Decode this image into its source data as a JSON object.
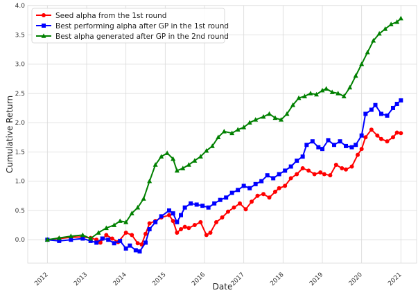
{
  "chart_data": {
    "type": "line",
    "xlabel": "Date",
    "ylabel": "Cumulative Return",
    "xlim": [
      2011.5,
      2021.4
    ],
    "ylim": [
      -0.4,
      4.0
    ],
    "x_ticks": [
      2012,
      2013,
      2014,
      2015,
      2016,
      2017,
      2018,
      2019,
      2020,
      2021
    ],
    "x_tick_labels": [
      "2012",
      "2013",
      "2014",
      "2015",
      "2016",
      "2017",
      "2018",
      "2019",
      "2020",
      "2021"
    ],
    "y_ticks": [
      0.0,
      0.5,
      1.0,
      1.5,
      2.0,
      2.5,
      3.0,
      3.5,
      4.0
    ],
    "y_tick_labels": [
      "0.0",
      "0.5",
      "1.0",
      "1.5",
      "2.0",
      "2.5",
      "3.0",
      "3.5",
      "4.0"
    ],
    "grid": true,
    "legend_position": "top-left",
    "series": [
      {
        "name": "Seed alpha from the 1st round",
        "color": "#ff0000",
        "marker": "circle",
        "x": [
          2012.0,
          2012.3,
          2012.6,
          2012.9,
          2013.1,
          2013.25,
          2013.35,
          2013.5,
          2013.65,
          2013.8,
          2014.0,
          2014.15,
          2014.3,
          2014.4,
          2014.5,
          2014.6,
          2014.75,
          2014.9,
          2015.1,
          2015.2,
          2015.3,
          2015.4,
          2015.5,
          2015.6,
          2015.75,
          2015.9,
          2016.05,
          2016.15,
          2016.3,
          2016.45,
          2016.6,
          2016.75,
          2016.9,
          2017.05,
          2017.2,
          2017.35,
          2017.5,
          2017.65,
          2017.8,
          2017.9,
          2018.05,
          2018.2,
          2018.35,
          2018.5,
          2018.65,
          2018.8,
          2018.95,
          2019.05,
          2019.2,
          2019.35,
          2019.5,
          2019.6,
          2019.75,
          2019.9,
          2020.0,
          2020.1,
          2020.25,
          2020.4,
          2020.5,
          2020.65,
          2020.8,
          2020.9,
          2021.0
        ],
        "y": [
          0.0,
          0.02,
          0.04,
          0.05,
          0.03,
          0.0,
          -0.05,
          0.08,
          0.02,
          -0.04,
          0.12,
          0.08,
          -0.06,
          -0.08,
          0.1,
          0.28,
          0.32,
          0.38,
          0.42,
          0.32,
          0.12,
          0.18,
          0.22,
          0.2,
          0.25,
          0.3,
          0.08,
          0.12,
          0.3,
          0.38,
          0.48,
          0.55,
          0.62,
          0.52,
          0.65,
          0.75,
          0.78,
          0.72,
          0.82,
          0.88,
          0.92,
          1.05,
          1.12,
          1.22,
          1.18,
          1.12,
          1.15,
          1.12,
          1.1,
          1.28,
          1.22,
          1.2,
          1.25,
          1.45,
          1.55,
          1.75,
          1.88,
          1.78,
          1.72,
          1.68,
          1.75,
          1.83,
          1.82
        ]
      },
      {
        "name": "Best performing alpha after GP in the 1st round",
        "color": "#0000ff",
        "marker": "square",
        "x": [
          2012.0,
          2012.3,
          2012.6,
          2012.9,
          2013.1,
          2013.25,
          2013.4,
          2013.55,
          2013.7,
          2013.85,
          2014.0,
          2014.1,
          2014.25,
          2014.35,
          2014.5,
          2014.6,
          2014.75,
          2014.9,
          2015.1,
          2015.2,
          2015.3,
          2015.4,
          2015.5,
          2015.65,
          2015.8,
          2015.95,
          2016.1,
          2016.25,
          2016.4,
          2016.55,
          2016.7,
          2016.85,
          2017.0,
          2017.15,
          2017.3,
          2017.45,
          2017.6,
          2017.75,
          2017.9,
          2018.05,
          2018.2,
          2018.35,
          2018.5,
          2018.6,
          2018.75,
          2018.9,
          2019.0,
          2019.15,
          2019.3,
          2019.45,
          2019.6,
          2019.75,
          2019.85,
          2020.0,
          2020.1,
          2020.25,
          2020.35,
          2020.5,
          2020.65,
          2020.8,
          2020.9,
          2021.0
        ],
        "y": [
          0.0,
          -0.02,
          0.0,
          0.02,
          -0.02,
          -0.05,
          0.02,
          0.0,
          -0.06,
          -0.02,
          -0.15,
          -0.1,
          -0.18,
          -0.2,
          -0.05,
          0.18,
          0.3,
          0.4,
          0.5,
          0.45,
          0.3,
          0.42,
          0.55,
          0.62,
          0.6,
          0.58,
          0.55,
          0.62,
          0.68,
          0.72,
          0.8,
          0.85,
          0.92,
          0.88,
          0.95,
          1.0,
          1.1,
          1.05,
          1.12,
          1.18,
          1.25,
          1.35,
          1.42,
          1.62,
          1.68,
          1.58,
          1.55,
          1.7,
          1.62,
          1.68,
          1.6,
          1.58,
          1.62,
          1.78,
          2.15,
          2.22,
          2.3,
          2.15,
          2.12,
          2.25,
          2.32,
          2.38
        ]
      },
      {
        "name": "Best alpha generated after GP in the 2nd round",
        "color": "#008000",
        "marker": "triangle",
        "x": [
          2012.0,
          2012.3,
          2012.6,
          2012.9,
          2013.1,
          2013.3,
          2013.5,
          2013.7,
          2013.85,
          2014.0,
          2014.15,
          2014.3,
          2014.45,
          2014.6,
          2014.75,
          2014.9,
          2015.05,
          2015.2,
          2015.3,
          2015.45,
          2015.6,
          2015.75,
          2015.9,
          2016.05,
          2016.2,
          2016.35,
          2016.5,
          2016.7,
          2016.85,
          2017.0,
          2017.15,
          2017.3,
          2017.5,
          2017.65,
          2017.8,
          2017.95,
          2018.1,
          2018.25,
          2018.4,
          2018.55,
          2018.7,
          2018.85,
          2019.0,
          2019.1,
          2019.25,
          2019.4,
          2019.55,
          2019.7,
          2019.85,
          2020.0,
          2020.15,
          2020.3,
          2020.45,
          2020.6,
          2020.75,
          2020.9,
          2021.0
        ],
        "y": [
          0.0,
          0.03,
          0.06,
          0.08,
          0.02,
          0.12,
          0.2,
          0.25,
          0.32,
          0.3,
          0.45,
          0.55,
          0.7,
          1.0,
          1.28,
          1.42,
          1.48,
          1.38,
          1.18,
          1.22,
          1.28,
          1.35,
          1.42,
          1.52,
          1.6,
          1.75,
          1.85,
          1.82,
          1.88,
          1.92,
          2.0,
          2.05,
          2.1,
          2.15,
          2.08,
          2.05,
          2.15,
          2.3,
          2.42,
          2.45,
          2.5,
          2.48,
          2.55,
          2.58,
          2.52,
          2.5,
          2.45,
          2.6,
          2.8,
          3.0,
          3.2,
          3.4,
          3.52,
          3.6,
          3.68,
          3.72,
          3.78
        ]
      }
    ]
  }
}
